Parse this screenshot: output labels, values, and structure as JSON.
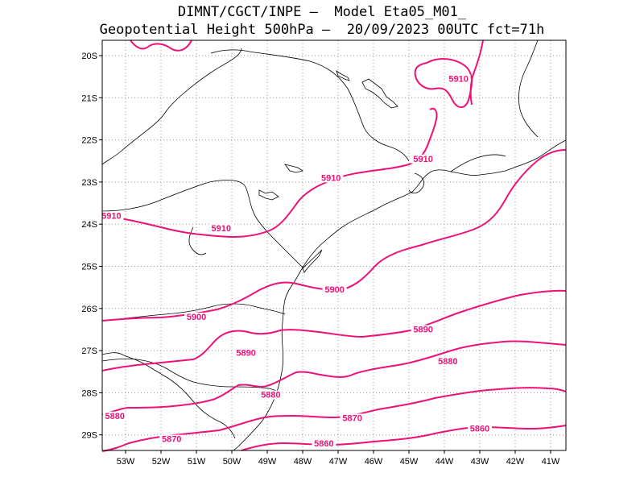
{
  "title": {
    "line1": "DIMNT/CGCT/INPE –  Model Eta05_M01_",
    "line2": "Geopotential Height 500hPa –  20/09/2023 00UTC fct=71h"
  },
  "map": {
    "lat_labels": [
      "20S",
      "21S",
      "22S",
      "23S",
      "24S",
      "25S",
      "26S",
      "27S",
      "28S",
      "29S"
    ],
    "lon_labels": [
      "53W",
      "52W",
      "51W",
      "50W",
      "49W",
      "48W",
      "47W",
      "46W",
      "45W",
      "44W",
      "43W",
      "42W",
      "41W"
    ],
    "contour_color": "#ee1177",
    "contour_labels": [
      {
        "text": "5910",
        "lon": -43.6,
        "lat": -20.6
      },
      {
        "text": "5910",
        "lon": -44.6,
        "lat": -22.5
      },
      {
        "text": "5910",
        "lon": -47.2,
        "lat": -22.95
      },
      {
        "text": "5910",
        "lon": -53.4,
        "lat": -23.85
      },
      {
        "text": "5910",
        "lon": -50.3,
        "lat": -24.15
      },
      {
        "text": "5900",
        "lon": -47.1,
        "lat": -25.6
      },
      {
        "text": "5900",
        "lon": -51.0,
        "lat": -26.25
      },
      {
        "text": "5890",
        "lon": -44.6,
        "lat": -26.55
      },
      {
        "text": "5890",
        "lon": -49.6,
        "lat": -27.1
      },
      {
        "text": "5880",
        "lon": -43.9,
        "lat": -27.3
      },
      {
        "text": "5880",
        "lon": -53.3,
        "lat": -28.6
      },
      {
        "text": "5880",
        "lon": -48.9,
        "lat": -28.1
      },
      {
        "text": "5870",
        "lon": -46.6,
        "lat": -28.65
      },
      {
        "text": "5870",
        "lon": -51.7,
        "lat": -29.15
      },
      {
        "text": "5860",
        "lon": -43.0,
        "lat": -28.9
      },
      {
        "text": "5860",
        "lon": -47.4,
        "lat": -29.25
      }
    ]
  }
}
